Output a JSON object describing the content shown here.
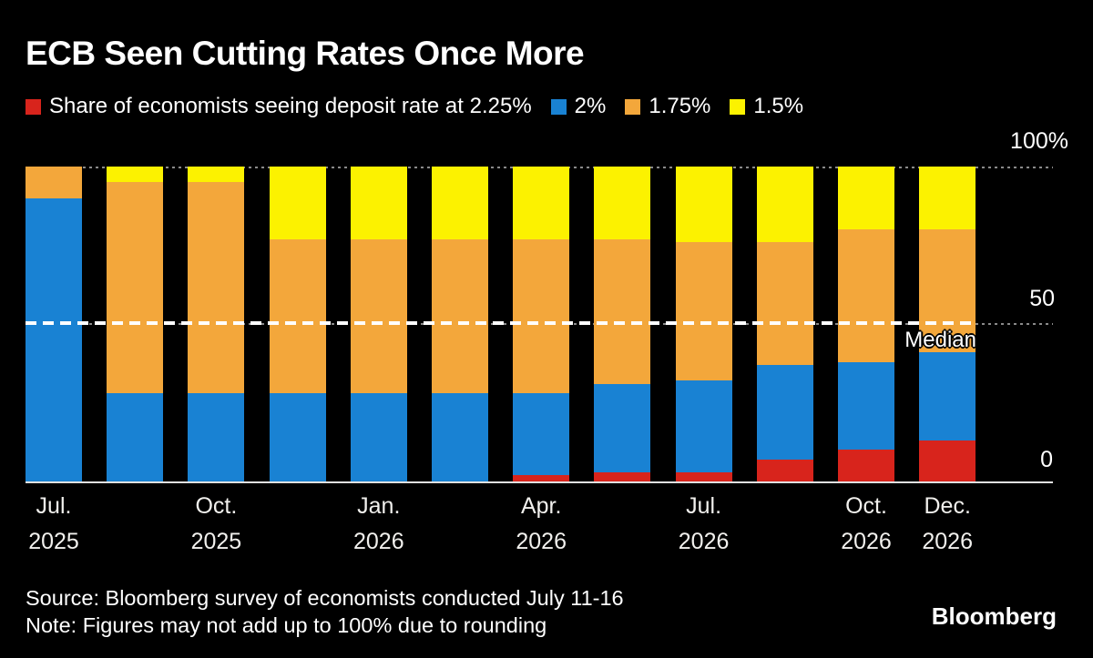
{
  "title": "ECB Seen Cutting Rates Once More",
  "legend": {
    "items": [
      {
        "label": "Share of economists seeing deposit rate at 2.25%",
        "color": "#d8241c"
      },
      {
        "label": "2%",
        "color": "#1982d3"
      },
      {
        "label": "1.75%",
        "color": "#f3a73b"
      },
      {
        "label": "1.5%",
        "color": "#fcf200"
      }
    ]
  },
  "y_axis": {
    "labels": [
      {
        "text": "100%"
      },
      {
        "text": "50"
      },
      {
        "text": "0"
      }
    ]
  },
  "annotations": {
    "median_label": "Median"
  },
  "footer": {
    "source": "Source: Bloomberg survey of economists conducted July 11-16",
    "note": "Note: Figures may not add up to 100% due to rounding",
    "logo": "Bloomberg"
  },
  "colors": {
    "background": "#000000",
    "text": "#ffffff",
    "grid": "#8a8a8a",
    "axis_line": "#e0e0e0",
    "median_line": "#ffffff"
  },
  "chart_data": {
    "type": "bar",
    "stacked": true,
    "unit": "%",
    "ylim": [
      0,
      100
    ],
    "grid": true,
    "gridlines_at": [
      100,
      50
    ],
    "median_line_y": 50,
    "legend_position": "top",
    "bar_count": 12,
    "x_ticks": [
      {
        "month": "Jul.",
        "year": "2025",
        "bar_index": 0
      },
      {
        "month": "Oct.",
        "year": "2025",
        "bar_index": 2
      },
      {
        "month": "Jan.",
        "year": "2026",
        "bar_index": 4
      },
      {
        "month": "Apr.",
        "year": "2026",
        "bar_index": 6
      },
      {
        "month": "Jul.",
        "year": "2026",
        "bar_index": 8
      },
      {
        "month": "Oct.",
        "year": "2026",
        "bar_index": 10
      },
      {
        "month": "Dec.",
        "year": "2026",
        "bar_index": 11
      }
    ],
    "series": [
      {
        "name": "2.25%",
        "color": "#d8241c",
        "values": [
          0,
          0,
          0,
          0,
          0,
          0,
          2,
          3,
          3,
          7,
          10,
          13
        ]
      },
      {
        "name": "2%",
        "color": "#1982d3",
        "values": [
          90,
          28,
          28,
          28,
          28,
          28,
          26,
          28,
          29,
          30,
          28,
          28
        ]
      },
      {
        "name": "1.75%",
        "color": "#f3a73b",
        "values": [
          10,
          67,
          67,
          49,
          49,
          49,
          49,
          46,
          44,
          39,
          42,
          39
        ]
      },
      {
        "name": "1.5%",
        "color": "#fcf200",
        "values": [
          0,
          5,
          5,
          23,
          23,
          23,
          23,
          23,
          24,
          24,
          20,
          20
        ]
      }
    ]
  }
}
